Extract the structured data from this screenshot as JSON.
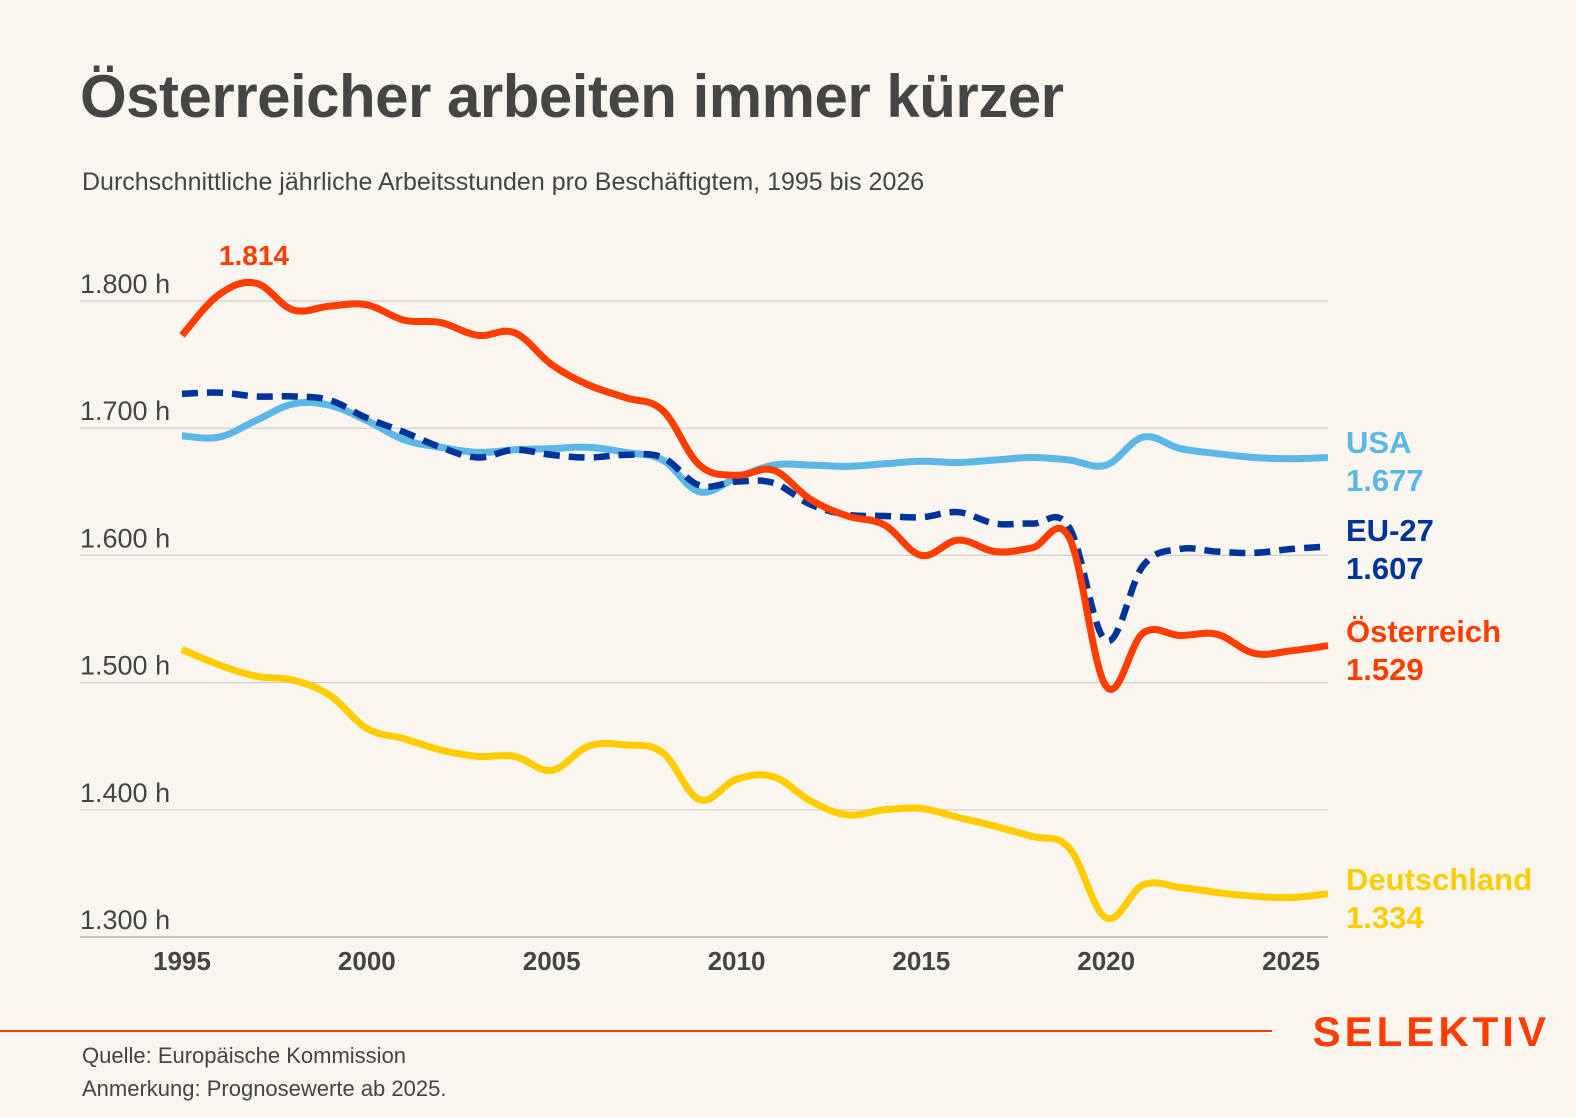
{
  "header": {
    "title": "Österreicher arbeiten immer kürzer",
    "subtitle": "Durchschnittliche jährliche Arbeitsstunden pro Beschäftigtem, 1995 bis 2026"
  },
  "footer": {
    "source": "Quelle: Europäische Kommission",
    "note": "Anmerkung: Prognosewerte ab 2025.",
    "brand": "SELEKTIV"
  },
  "chart_data": {
    "type": "line",
    "title": "Österreicher arbeiten immer kürzer",
    "subtitle": "Durchschnittliche jährliche Arbeitsstunden pro Beschäftigtem, 1995 bis 2026",
    "xlabel": "",
    "ylabel": "",
    "x": [
      1995,
      1996,
      1997,
      1998,
      1999,
      2000,
      2001,
      2002,
      2003,
      2004,
      2005,
      2006,
      2007,
      2008,
      2009,
      2010,
      2011,
      2012,
      2013,
      2014,
      2015,
      2016,
      2017,
      2018,
      2019,
      2020,
      2021,
      2022,
      2023,
      2024,
      2025,
      2026
    ],
    "xlim": [
      1995,
      2026
    ],
    "ylim": [
      1300,
      1820
    ],
    "x_ticks": [
      1995,
      2000,
      2005,
      2010,
      2015,
      2020,
      2025
    ],
    "x_tick_labels": [
      "1995",
      "2000",
      "2005",
      "2010",
      "2015",
      "2020",
      "2025"
    ],
    "y_ticks": [
      1300,
      1400,
      1500,
      1600,
      1700,
      1800
    ],
    "y_tick_labels": [
      "1.300 h",
      "1.400 h",
      "1.500 h",
      "1.600 h",
      "1.700 h",
      "1.800 h"
    ],
    "grid": true,
    "legend": "direct labels right",
    "forecast_from": 2025,
    "series": [
      {
        "name": "USA",
        "color": "#5cb6e6",
        "dashed": false,
        "end_label": "1.677",
        "values": [
          1694,
          1693,
          1706,
          1719,
          1718,
          1706,
          1691,
          1685,
          1681,
          1683,
          1684,
          1685,
          1681,
          1675,
          1650,
          1661,
          1671,
          1671,
          1670,
          1672,
          1674,
          1673,
          1675,
          1677,
          1675,
          1671,
          1693,
          1684,
          1680,
          1677,
          1676,
          1677
        ]
      },
      {
        "name": "EU-27",
        "color": "#003399",
        "dashed": true,
        "end_label": "1.607",
        "values": [
          1727,
          1728,
          1725,
          1725,
          1722,
          1708,
          1697,
          1685,
          1677,
          1683,
          1679,
          1677,
          1679,
          1677,
          1655,
          1658,
          1657,
          1640,
          1632,
          1631,
          1630,
          1634,
          1625,
          1625,
          1622,
          1533,
          1592,
          1605,
          1603,
          1602,
          1605,
          1607
        ]
      },
      {
        "name": "Österreich",
        "color": "#ff3d00",
        "dashed": false,
        "end_label": "1.529",
        "peak_label": "1.814",
        "peak_year": 1997,
        "values": [
          1773,
          1805,
          1814,
          1793,
          1796,
          1797,
          1785,
          1783,
          1773,
          1775,
          1750,
          1734,
          1724,
          1714,
          1671,
          1663,
          1667,
          1644,
          1631,
          1624,
          1600,
          1612,
          1603,
          1606,
          1614,
          1497,
          1539,
          1537,
          1538,
          1523,
          1525,
          1529
        ]
      },
      {
        "name": "Deutschland",
        "color": "#ffcc00",
        "dashed": false,
        "end_label": "1.334",
        "values": [
          1526,
          1514,
          1505,
          1502,
          1490,
          1464,
          1456,
          1447,
          1442,
          1442,
          1431,
          1450,
          1451,
          1445,
          1408,
          1424,
          1426,
          1407,
          1396,
          1400,
          1401,
          1394,
          1387,
          1379,
          1370,
          1315,
          1341,
          1339,
          1335,
          1332,
          1331,
          1334
        ]
      }
    ],
    "annotations": [
      {
        "text": "1.814",
        "series": "Österreich",
        "year": 1997,
        "value": 1814
      }
    ]
  }
}
